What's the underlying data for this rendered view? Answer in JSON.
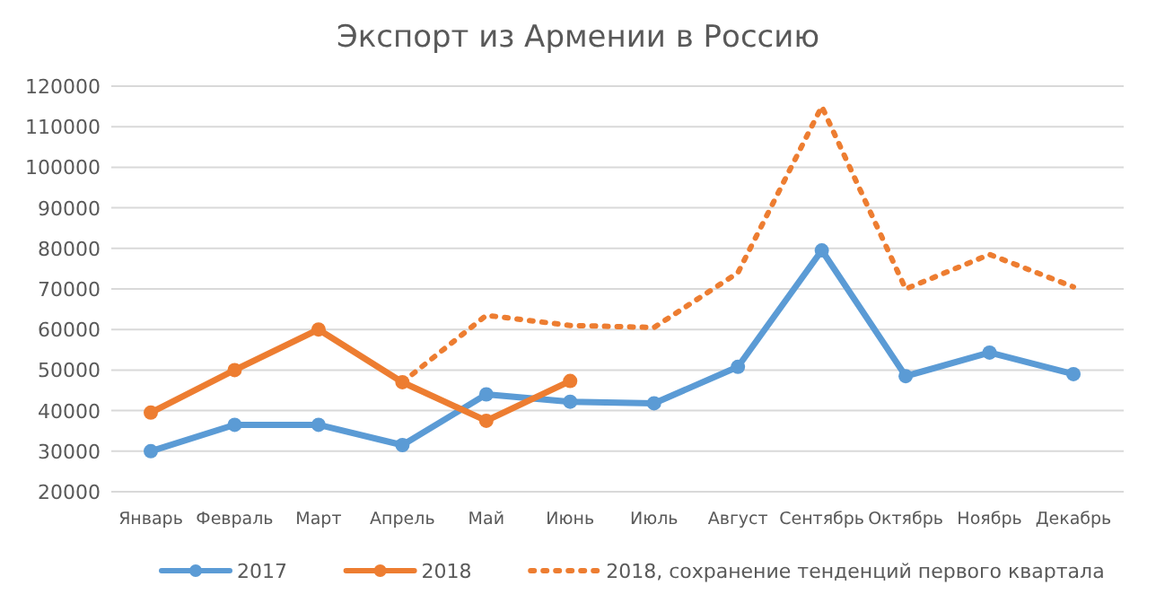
{
  "chart_data": {
    "type": "line",
    "title": "Экспорт из Армении в Россию",
    "categories": [
      "Январь",
      "Февраль",
      "Март",
      "Апрель",
      "Май",
      "Июнь",
      "Июль",
      "Август",
      "Сентябрь",
      "Октябрь",
      "Ноябрь",
      "Декабрь"
    ],
    "series": [
      {
        "name": "2017",
        "color": "#5b9bd5",
        "marker": "circle",
        "line_style": "solid",
        "values": [
          30000,
          36500,
          36500,
          31500,
          44000,
          42200,
          41800,
          50800,
          79500,
          48500,
          54300,
          49000
        ]
      },
      {
        "name": "2018",
        "color": "#ed7d31",
        "marker": "circle",
        "line_style": "solid",
        "values": [
          39500,
          50000,
          60000,
          47000,
          37500,
          47300,
          null,
          null,
          null,
          null,
          null,
          null
        ]
      },
      {
        "name": "2018, сохранение тенденций первого квартала",
        "color": "#ed7d31",
        "marker": "none",
        "line_style": "dotted",
        "values": [
          null,
          null,
          null,
          47000,
          63500,
          61000,
          60500,
          74000,
          115000,
          70000,
          78500,
          70500
        ]
      }
    ],
    "ylim": [
      20000,
      120000
    ],
    "yticks": [
      20000,
      30000,
      40000,
      50000,
      60000,
      70000,
      80000,
      90000,
      100000,
      110000,
      120000
    ],
    "grid": "y",
    "legend": "bottom"
  }
}
